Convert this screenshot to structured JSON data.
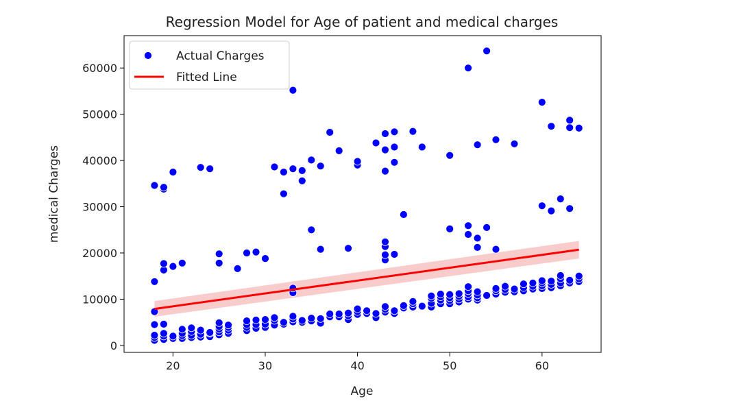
{
  "chart_data": {
    "type": "scatter",
    "title": "Regression Model for Age of patient and medical charges",
    "xlabel": "Age",
    "ylabel": "medical Charges",
    "xlim": [
      14.7,
      66.4
    ],
    "ylim": [
      -1500,
      67000
    ],
    "xticks": [
      20,
      30,
      40,
      50,
      60
    ],
    "yticks": [
      0,
      10000,
      20000,
      30000,
      40000,
      50000,
      60000
    ],
    "grid": false,
    "legend_position": "top-left",
    "colors": {
      "points": "#0000ff",
      "line": "#ff0000",
      "band": "#f4a3a3"
    },
    "legend": [
      {
        "label": "Actual Charges",
        "marker": "circle"
      },
      {
        "label": "Fitted Line",
        "marker": "line"
      }
    ],
    "series": [
      {
        "name": "Actual Charges",
        "kind": "scatter",
        "points": [
          [
            18,
            1100
          ],
          [
            18,
            1700
          ],
          [
            18,
            2200
          ],
          [
            18,
            4500
          ],
          [
            18,
            7300
          ],
          [
            18,
            13800
          ],
          [
            18,
            34600
          ],
          [
            19,
            1300
          ],
          [
            19,
            2000
          ],
          [
            19,
            2600
          ],
          [
            19,
            4600
          ],
          [
            19,
            16300
          ],
          [
            19,
            17700
          ],
          [
            19,
            33800
          ],
          [
            19,
            34200
          ],
          [
            20,
            1500
          ],
          [
            20,
            2000
          ],
          [
            20,
            17100
          ],
          [
            20,
            37500
          ],
          [
            21,
            1500
          ],
          [
            21,
            2100
          ],
          [
            21,
            2600
          ],
          [
            21,
            3500
          ],
          [
            21,
            17800
          ],
          [
            22,
            1700
          ],
          [
            22,
            2200
          ],
          [
            22,
            3000
          ],
          [
            22,
            3800
          ],
          [
            23,
            1800
          ],
          [
            23,
            2400
          ],
          [
            23,
            3300
          ],
          [
            23,
            38500
          ],
          [
            24,
            1900
          ],
          [
            24,
            2600
          ],
          [
            24,
            2800
          ],
          [
            24,
            38200
          ],
          [
            25,
            2300
          ],
          [
            25,
            2900
          ],
          [
            25,
            3500
          ],
          [
            25,
            4100
          ],
          [
            25,
            4900
          ],
          [
            25,
            17800
          ],
          [
            25,
            19800
          ],
          [
            26,
            2600
          ],
          [
            26,
            3300
          ],
          [
            26,
            3900
          ],
          [
            26,
            4400
          ],
          [
            27,
            16600
          ],
          [
            28,
            3200
          ],
          [
            28,
            3900
          ],
          [
            28,
            4500
          ],
          [
            28,
            5300
          ],
          [
            28,
            20000
          ],
          [
            29,
            3700
          ],
          [
            29,
            4500
          ],
          [
            29,
            5500
          ],
          [
            29,
            20200
          ],
          [
            30,
            3900
          ],
          [
            30,
            4600
          ],
          [
            30,
            5600
          ],
          [
            30,
            18800
          ],
          [
            31,
            4400
          ],
          [
            31,
            5400
          ],
          [
            31,
            6000
          ],
          [
            31,
            38600
          ],
          [
            32,
            4600
          ],
          [
            32,
            5000
          ],
          [
            32,
            32800
          ],
          [
            32,
            37500
          ],
          [
            33,
            5100
          ],
          [
            33,
            5700
          ],
          [
            33,
            6300
          ],
          [
            33,
            11400
          ],
          [
            33,
            12400
          ],
          [
            33,
            38200
          ],
          [
            33,
            55200
          ],
          [
            34,
            5000
          ],
          [
            34,
            5400
          ],
          [
            34,
            35600
          ],
          [
            34,
            37800
          ],
          [
            35,
            5300
          ],
          [
            35,
            5900
          ],
          [
            35,
            25000
          ],
          [
            35,
            40100
          ],
          [
            36,
            4800
          ],
          [
            36,
            5800
          ],
          [
            36,
            20800
          ],
          [
            36,
            38800
          ],
          [
            37,
            6200
          ],
          [
            37,
            6800
          ],
          [
            37,
            46100
          ],
          [
            38,
            6200
          ],
          [
            38,
            6800
          ],
          [
            38,
            42100
          ],
          [
            39,
            5600
          ],
          [
            39,
            6400
          ],
          [
            39,
            7000
          ],
          [
            39,
            21000
          ],
          [
            40,
            6700
          ],
          [
            40,
            7300
          ],
          [
            40,
            7900
          ],
          [
            40,
            39000
          ],
          [
            40,
            39800
          ],
          [
            41,
            6900
          ],
          [
            41,
            7500
          ],
          [
            42,
            6000
          ],
          [
            42,
            6900
          ],
          [
            42,
            43800
          ],
          [
            43,
            7200
          ],
          [
            43,
            7800
          ],
          [
            43,
            8400
          ],
          [
            43,
            18500
          ],
          [
            43,
            19600
          ],
          [
            43,
            21400
          ],
          [
            43,
            22400
          ],
          [
            43,
            37700
          ],
          [
            43,
            42300
          ],
          [
            43,
            45800
          ],
          [
            44,
            6900
          ],
          [
            44,
            7500
          ],
          [
            44,
            19700
          ],
          [
            44,
            39600
          ],
          [
            44,
            42900
          ],
          [
            44,
            46200
          ],
          [
            45,
            8100
          ],
          [
            45,
            8600
          ],
          [
            45,
            28300
          ],
          [
            46,
            8300
          ],
          [
            46,
            9000
          ],
          [
            46,
            9500
          ],
          [
            46,
            46300
          ],
          [
            47,
            8500
          ],
          [
            47,
            42900
          ],
          [
            48,
            8300
          ],
          [
            48,
            9100
          ],
          [
            48,
            10200
          ],
          [
            48,
            10700
          ],
          [
            49,
            9000
          ],
          [
            49,
            9800
          ],
          [
            49,
            10500
          ],
          [
            49,
            11100
          ],
          [
            50,
            9000
          ],
          [
            50,
            9700
          ],
          [
            50,
            10300
          ],
          [
            50,
            11000
          ],
          [
            50,
            25200
          ],
          [
            50,
            41100
          ],
          [
            51,
            9400
          ],
          [
            51,
            10000
          ],
          [
            51,
            10600
          ],
          [
            51,
            11200
          ],
          [
            52,
            10000
          ],
          [
            52,
            10500
          ],
          [
            52,
            11200
          ],
          [
            52,
            11800
          ],
          [
            52,
            12700
          ],
          [
            52,
            24000
          ],
          [
            52,
            25900
          ],
          [
            52,
            60000
          ],
          [
            53,
            9800
          ],
          [
            53,
            10300
          ],
          [
            53,
            10900
          ],
          [
            53,
            11600
          ],
          [
            53,
            21200
          ],
          [
            53,
            23200
          ],
          [
            53,
            43400
          ],
          [
            54,
            10800
          ],
          [
            54,
            25500
          ],
          [
            54,
            63700
          ],
          [
            55,
            11100
          ],
          [
            55,
            11800
          ],
          [
            55,
            12300
          ],
          [
            55,
            20800
          ],
          [
            55,
            44500
          ],
          [
            56,
            11500
          ],
          [
            56,
            12100
          ],
          [
            56,
            12800
          ],
          [
            57,
            11600
          ],
          [
            57,
            12200
          ],
          [
            57,
            43600
          ],
          [
            58,
            11800
          ],
          [
            58,
            12500
          ],
          [
            58,
            13300
          ],
          [
            59,
            12200
          ],
          [
            59,
            12800
          ],
          [
            59,
            13500
          ],
          [
            60,
            12300
          ],
          [
            60,
            12900
          ],
          [
            60,
            13500
          ],
          [
            60,
            14000
          ],
          [
            60,
            30200
          ],
          [
            60,
            52600
          ],
          [
            61,
            12500
          ],
          [
            61,
            13200
          ],
          [
            61,
            13900
          ],
          [
            61,
            29100
          ],
          [
            61,
            47400
          ],
          [
            62,
            12900
          ],
          [
            62,
            13500
          ],
          [
            62,
            14400
          ],
          [
            62,
            15100
          ],
          [
            62,
            31700
          ],
          [
            63,
            13500
          ],
          [
            63,
            14100
          ],
          [
            63,
            29600
          ],
          [
            63,
            47100
          ],
          [
            63,
            48700
          ],
          [
            64,
            13800
          ],
          [
            64,
            14400
          ],
          [
            64,
            15000
          ],
          [
            64,
            47000
          ]
        ]
      },
      {
        "name": "Fitted Line",
        "kind": "line",
        "x": [
          18,
          64
        ],
        "y": [
          7900,
          20700
        ],
        "band_lower": [
          6200,
          18800
        ],
        "band_upper": [
          9600,
          22600
        ]
      }
    ]
  }
}
